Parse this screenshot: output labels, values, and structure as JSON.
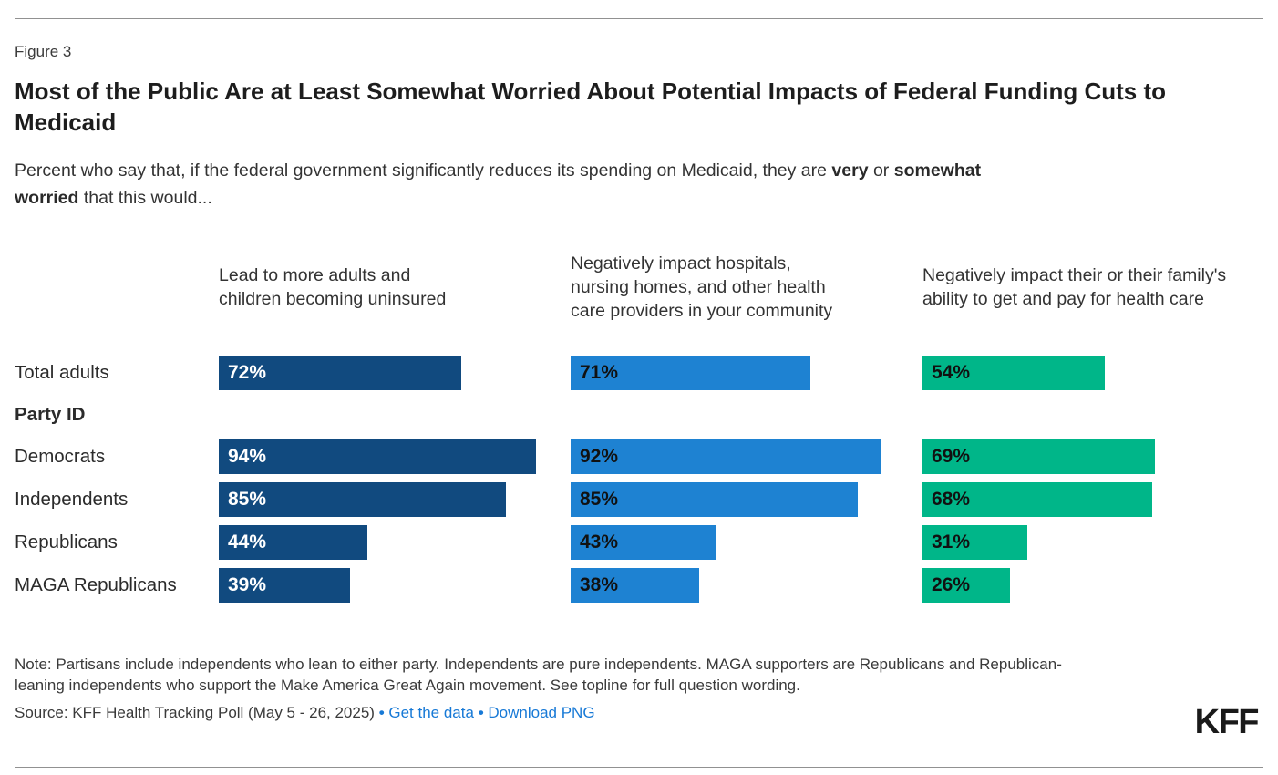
{
  "figure_label": "Figure 3",
  "title": "Most of the Public Are at Least Somewhat Worried About Potential Impacts of Federal Funding Cuts to Medicaid",
  "subtitle": {
    "pre": "Percent who say that, if the federal government significantly reduces its spending on Medicaid, they are ",
    "bold1": "very",
    "mid": " or ",
    "bold2": "somewhat worried",
    "post": " that this would..."
  },
  "chart_data": {
    "type": "bar",
    "orientation": "horizontal",
    "unit": "%",
    "xlim": [
      0,
      100
    ],
    "categories": [
      "Total adults",
      "Democrats",
      "Independents",
      "Republicans",
      "MAGA Republicans"
    ],
    "group_label_after_first": "Party ID",
    "series": [
      {
        "name": "Lead to more adults and children becoming uninsured",
        "color": "#114a7f",
        "value_label_color": "#ffffff",
        "values": [
          72,
          94,
          85,
          44,
          39
        ]
      },
      {
        "name": "Negatively impact hospitals, nursing homes, and other health care providers in your community",
        "color": "#1e82d2",
        "value_label_color": "#111111",
        "values": [
          71,
          92,
          85,
          43,
          38
        ]
      },
      {
        "name": "Negatively impact their or their family's ability to get and pay for health care",
        "color": "#00b689",
        "value_label_color": "#111111",
        "values": [
          54,
          69,
          68,
          31,
          26
        ]
      }
    ]
  },
  "note": "Note: Partisans include independents who lean to either party. Independents are pure independents. MAGA supporters are Republicans and Republican-leaning independents who support the Make America Great Again movement. See topline for full question wording.",
  "source_prefix": "Source: KFF Health Tracking Poll (May 5 - 26, 2025)",
  "links": {
    "get_data": "Get the data",
    "download_png": "Download PNG"
  },
  "separator": "•",
  "logo_text": "KFF",
  "colors": {
    "link": "#1779d6",
    "rule": "#919191"
  }
}
